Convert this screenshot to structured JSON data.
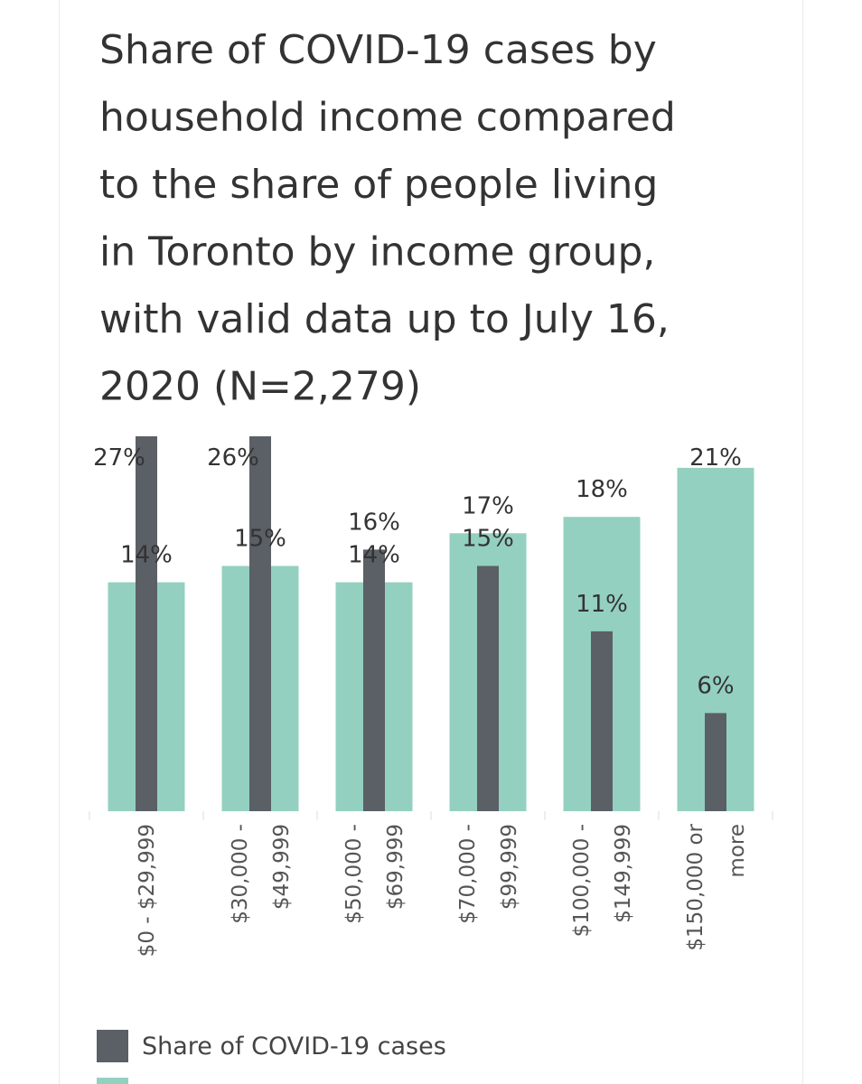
{
  "chart_data": {
    "type": "overlay-bar",
    "title": [
      "Share of COVID-19 cases by",
      "household income compared",
      "to the share of people living",
      "in Toronto by income group,",
      "with valid data up to July 16,",
      "2020 (N=2,279)"
    ],
    "categories": [
      [
        "$0 - $29,999"
      ],
      [
        "$30,000 -",
        "$49,999"
      ],
      [
        "$50,000 -",
        "$69,999"
      ],
      [
        "$70,000 -",
        "$99,999"
      ],
      [
        "$100,000 -",
        "$149,999"
      ],
      [
        "$150,000 or",
        "more"
      ]
    ],
    "series": [
      {
        "color": "#93d0c0",
        "values": [
          14,
          15,
          14,
          17,
          18,
          21
        ],
        "value_labels": [
          "14%",
          "15%",
          "14%",
          "17%",
          "18%",
          "21%"
        ]
      },
      {
        "name": "Share of COVID-19 cases",
        "color": "#5b5f66",
        "values": [
          27,
          26,
          16,
          15,
          11,
          6
        ],
        "value_labels": [
          "27%",
          "26%",
          "16%",
          "15%",
          "11%",
          "6%"
        ]
      }
    ]
  }
}
